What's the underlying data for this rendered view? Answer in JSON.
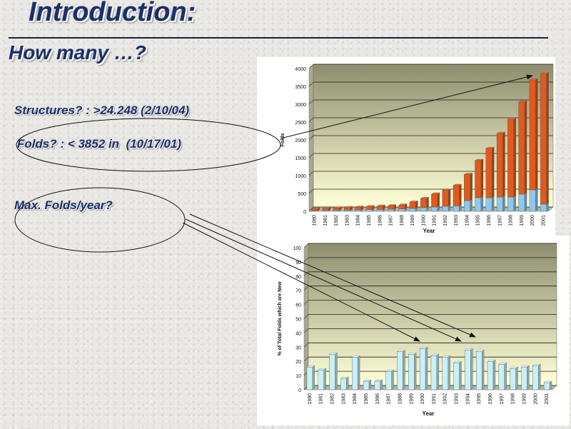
{
  "slide": {
    "title": "Introduction:",
    "subtitle": "How many …?",
    "bullets": [
      "Structures? : >24.248 (2/10/04)",
      "Folds? : < 3852 in  (10/17/01)",
      "Max. Folds/year?"
    ]
  },
  "colors": {
    "title_text": "#1b2f6a",
    "plot_background_top": "#8e8e6e",
    "plot_background_bottom": "#ffffd8",
    "bar_orange": "#e05a1e",
    "bar_blue": "#8ec8f0",
    "bar_pale_blue": "#c8f0f8"
  },
  "chart_data": [
    {
      "type": "bar",
      "stacked": true,
      "categories": [
        "1980",
        "1981",
        "1982",
        "1983",
        "1984",
        "1985",
        "1986",
        "1987",
        "1988",
        "1989",
        "1990",
        "1991",
        "1992",
        "1993",
        "1994",
        "1995",
        "1996",
        "1997",
        "1998",
        "1999",
        "2000",
        "2001"
      ],
      "series": [
        {
          "values": [
            20,
            25,
            30,
            35,
            40,
            45,
            50,
            55,
            65,
            80,
            100,
            120,
            140,
            150,
            300,
            380,
            380,
            400,
            400,
            480,
            600,
            200
          ]
        },
        {
          "values": [
            40,
            50,
            60,
            65,
            70,
            80,
            90,
            95,
            105,
            175,
            255,
            360,
            450,
            570,
            730,
            1040,
            1380,
            1780,
            2180,
            2580,
            3080,
            3652
          ]
        }
      ],
      "xlabel": "Year",
      "ylabel": "Folds",
      "ylim": [
        0,
        4000
      ],
      "yticks": [
        0,
        500,
        1000,
        1500,
        2000,
        2500,
        3000,
        3500,
        4000
      ],
      "grid": true
    },
    {
      "type": "bar",
      "categories": [
        "1980",
        "1981",
        "1982",
        "1983",
        "1984",
        "1985",
        "1986",
        "1987",
        "1988",
        "1989",
        "1990",
        "1991",
        "1992",
        "1993",
        "1994",
        "1995",
        "1996",
        "1997",
        "1998",
        "1999",
        "2000",
        "2001"
      ],
      "series": [
        {
          "values": [
            16,
            14,
            25,
            8,
            23,
            6,
            6,
            13,
            27,
            25,
            29,
            24,
            23,
            19,
            28,
            27,
            20,
            18,
            15,
            16,
            17,
            5
          ]
        }
      ],
      "xlabel": "Year",
      "ylabel": "% of Total Folds which are New",
      "ylim": [
        0,
        100
      ],
      "yticks": [
        0,
        10,
        20,
        30,
        40,
        50,
        60,
        70,
        80,
        90,
        100
      ],
      "grid": true
    }
  ]
}
